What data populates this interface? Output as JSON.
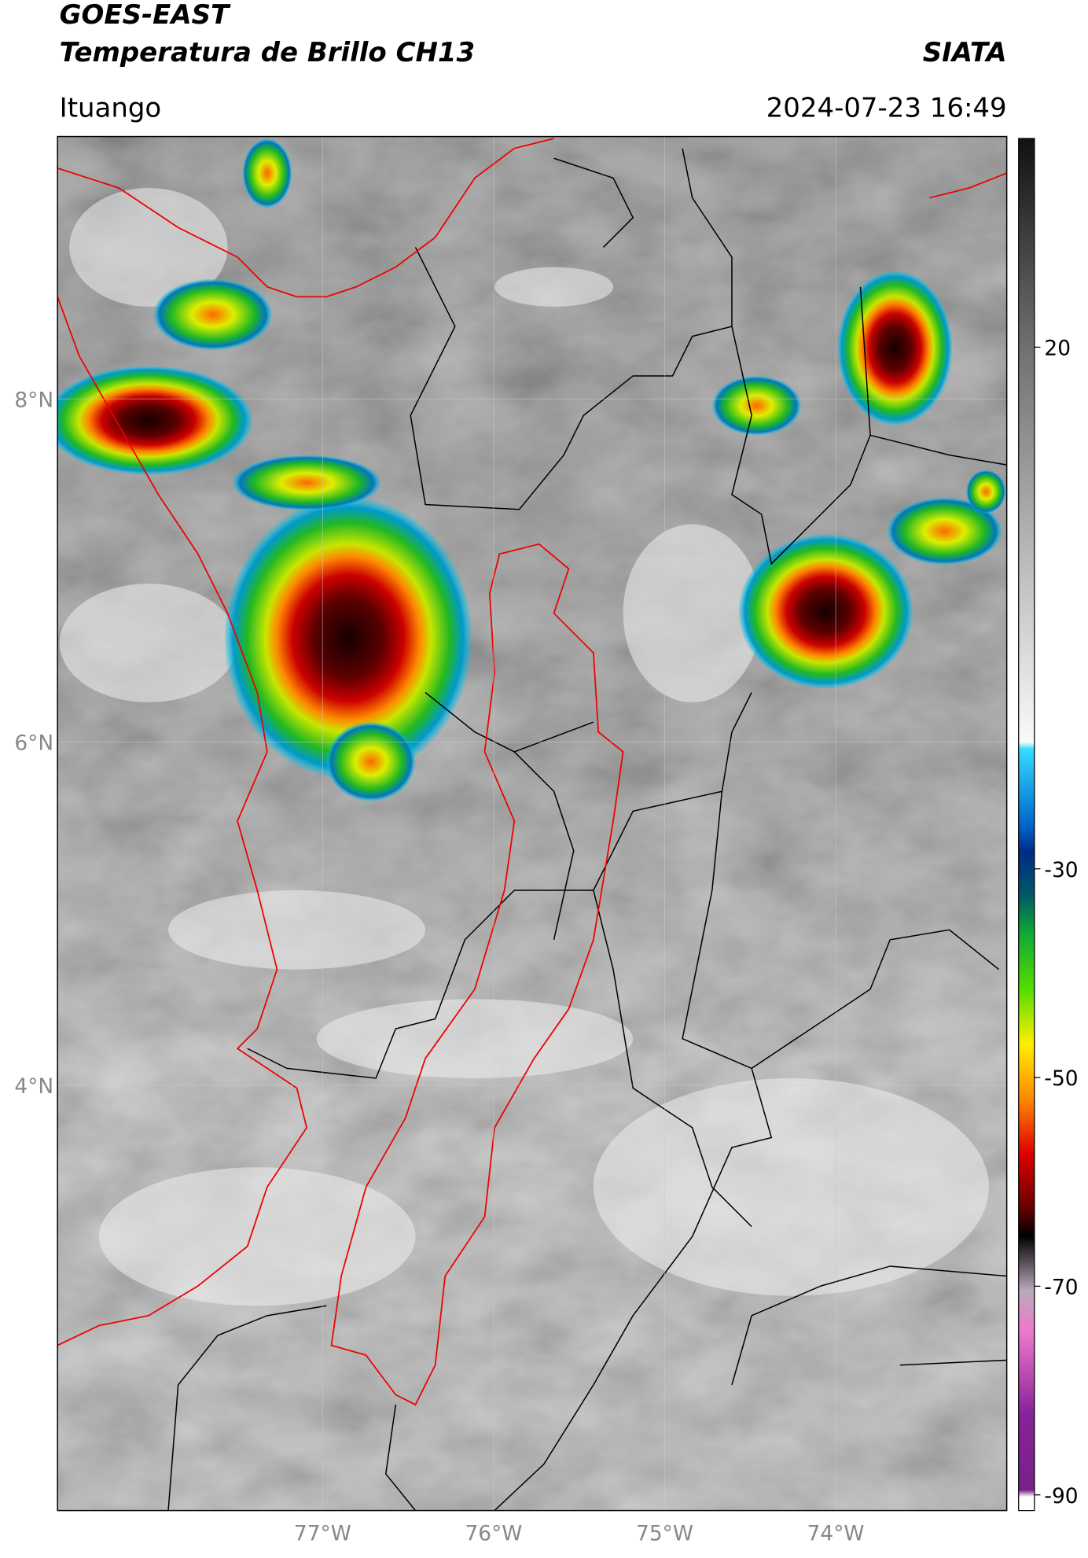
{
  "header": {
    "title": "GOES-EAST",
    "subtitle": "Temperatura de Brillo CH13",
    "organization": "SIATA",
    "location": "Ituango",
    "datetime": "2024-07-23 16:49"
  },
  "map": {
    "lonlim": [
      -78.55,
      -73.0
    ],
    "latlim": [
      1.52,
      9.53
    ],
    "lon_ticks": [
      {
        "value": -77,
        "label": "77°W"
      },
      {
        "value": -76,
        "label": "76°W"
      },
      {
        "value": -75,
        "label": "75°W"
      },
      {
        "value": -74,
        "label": "74°W"
      }
    ],
    "lat_ticks": [
      {
        "value": 8,
        "label": "8°N"
      },
      {
        "value": 6,
        "label": "6°N"
      },
      {
        "value": 4,
        "label": "4°N"
      }
    ]
  },
  "colorbar": {
    "lim": [
      -91.5,
      40
    ],
    "ticks": [
      20,
      -30,
      -50,
      -70,
      -90
    ]
  }
}
